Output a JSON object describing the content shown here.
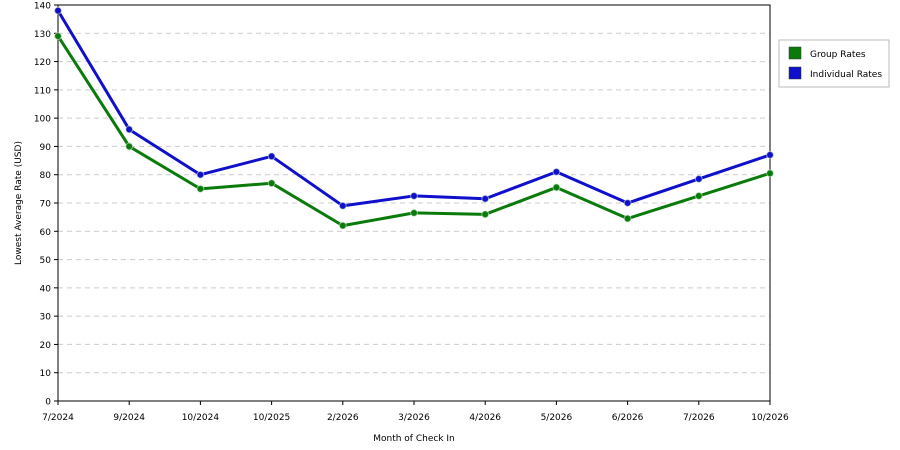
{
  "chart_data": {
    "type": "line",
    "title": "",
    "xlabel": "Month of Check In",
    "ylabel": "Lowest Average Rate (USD)",
    "categories": [
      "7/2024",
      "9/2024",
      "10/2024",
      "10/2025",
      "2/2026",
      "3/2026",
      "4/2026",
      "5/2026",
      "6/2026",
      "7/2026",
      "10/2026"
    ],
    "ylim": [
      0,
      140
    ],
    "yticks": [
      0,
      10,
      20,
      30,
      40,
      50,
      60,
      70,
      80,
      90,
      100,
      110,
      120,
      130,
      140
    ],
    "grid": true,
    "legend_position": "top-right",
    "series": [
      {
        "name": "Group Rates",
        "color": "#0a7a0a",
        "values": [
          129,
          90,
          75,
          77,
          62,
          66.5,
          66,
          75.5,
          64.5,
          72.5,
          80.5
        ]
      },
      {
        "name": "Individual Rates",
        "color": "#1010cc",
        "values": [
          138,
          96,
          80,
          86.5,
          69,
          72.5,
          71.5,
          81,
          70,
          78.5,
          87
        ]
      }
    ]
  }
}
